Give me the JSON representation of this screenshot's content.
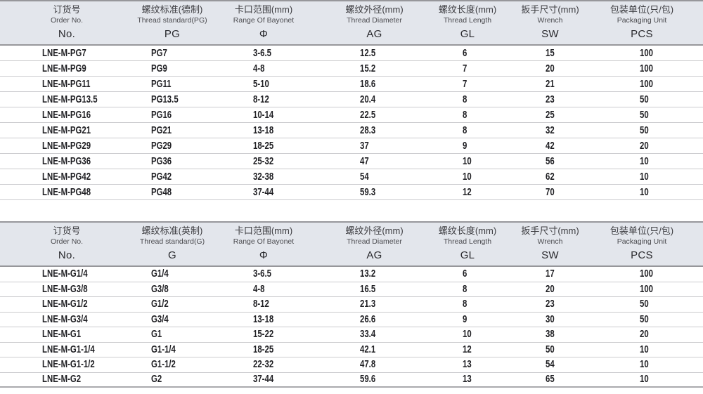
{
  "colors": {
    "header_bg": "#e3e6ec",
    "header_border": "#97979b",
    "row_separator": "#cbcbce",
    "bottom_border": "#aaaaae",
    "data_text": "#1f1f23"
  },
  "tables": [
    {
      "name": "pg-thread-spec-table",
      "columns": [
        {
          "zh": "订货号",
          "en": "Order No.",
          "code": "No."
        },
        {
          "zh": "螺纹标准(德制)",
          "en": "Thread standard(PG)",
          "code": "PG"
        },
        {
          "zh": "卡口范围(mm)",
          "en": "Range Of Bayonet",
          "code": "Φ"
        },
        {
          "zh": "螺纹外径(mm)",
          "en": "Thread Diameter",
          "code": "AG"
        },
        {
          "zh": "螺纹长度(mm)",
          "en": "Thread Length",
          "code": "GL"
        },
        {
          "zh": "扳手尺寸(mm)",
          "en": "Wrench",
          "code": "SW"
        },
        {
          "zh": "包装单位(只/包)",
          "en": "Packaging Unit",
          "code": "PCS"
        }
      ],
      "rows": [
        [
          "LNE-M-PG7",
          "PG7",
          "3-6.5",
          "12.5",
          "6",
          "15",
          "100"
        ],
        [
          "LNE-M-PG9",
          "PG9",
          "4-8",
          "15.2",
          "7",
          "20",
          "100"
        ],
        [
          "LNE-M-PG11",
          "PG11",
          "5-10",
          "18.6",
          "7",
          "21",
          "100"
        ],
        [
          "LNE-M-PG13.5",
          "PG13.5",
          "8-12",
          "20.4",
          "8",
          "23",
          "50"
        ],
        [
          "LNE-M-PG16",
          "PG16",
          "10-14",
          "22.5",
          "8",
          "25",
          "50"
        ],
        [
          "LNE-M-PG21",
          "PG21",
          "13-18",
          "28.3",
          "8",
          "32",
          "50"
        ],
        [
          "LNE-M-PG29",
          "PG29",
          "18-25",
          "37",
          "9",
          "42",
          "20"
        ],
        [
          "LNE-M-PG36",
          "PG36",
          "25-32",
          "47",
          "10",
          "56",
          "10"
        ],
        [
          "LNE-M-PG42",
          "PG42",
          "32-38",
          "54",
          "10",
          "62",
          "10"
        ],
        [
          "LNE-M-PG48",
          "PG48",
          "37-44",
          "59.3",
          "12",
          "70",
          "10"
        ]
      ]
    },
    {
      "name": "g-thread-spec-table",
      "columns": [
        {
          "zh": "订货号",
          "en": "Order No.",
          "code": "No."
        },
        {
          "zh": "螺纹标准(英制)",
          "en": "Thread standard(G)",
          "code": "G"
        },
        {
          "zh": "卡口范围(mm)",
          "en": "Range Of Bayonet",
          "code": "Φ"
        },
        {
          "zh": "螺纹外径(mm)",
          "en": "Thread Diameter",
          "code": "AG"
        },
        {
          "zh": "螺纹长度(mm)",
          "en": "Thread Length",
          "code": "GL"
        },
        {
          "zh": "扳手尺寸(mm)",
          "en": "Wrench",
          "code": "SW"
        },
        {
          "zh": "包装单位(只/包)",
          "en": "Packaging Unit",
          "code": "PCS"
        }
      ],
      "rows": [
        [
          "LNE-M-G1/4",
          "G1/4",
          "3-6.5",
          "13.2",
          "6",
          "17",
          "100"
        ],
        [
          "LNE-M-G3/8",
          "G3/8",
          "4-8",
          "16.5",
          "8",
          "20",
          "100"
        ],
        [
          "LNE-M-G1/2",
          "G1/2",
          "8-12",
          "21.3",
          "8",
          "23",
          "50"
        ],
        [
          "LNE-M-G3/4",
          "G3/4",
          "13-18",
          "26.6",
          "9",
          "30",
          "50"
        ],
        [
          "LNE-M-G1",
          "G1",
          "15-22",
          "33.4",
          "10",
          "38",
          "20"
        ],
        [
          "LNE-M-G1-1/4",
          "G1-1/4",
          "18-25",
          "42.1",
          "12",
          "50",
          "10"
        ],
        [
          "LNE-M-G1-1/2",
          "G1-1/2",
          "22-32",
          "47.8",
          "13",
          "54",
          "10"
        ],
        [
          "LNE-M-G2",
          "G2",
          "37-44",
          "59.6",
          "13",
          "65",
          "10"
        ]
      ]
    }
  ]
}
